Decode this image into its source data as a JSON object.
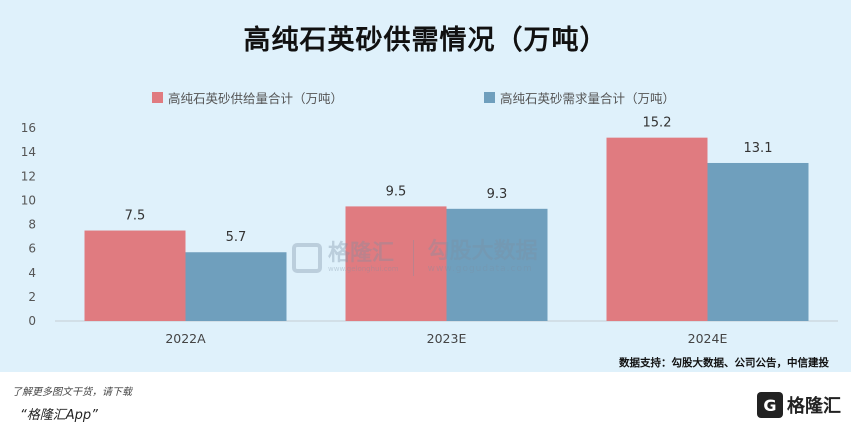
{
  "chart_data": {
    "type": "bar",
    "title": "高纯石英砂供需情况（万吨）",
    "categories": [
      "2022A",
      "2023E",
      "2024E"
    ],
    "series": [
      {
        "name": "高纯石英砂供给量合计（万吨）",
        "values": [
          7.5,
          9.5,
          15.2
        ],
        "color": "#e07b80"
      },
      {
        "name": "高纯石英砂需求量合计（万吨）",
        "values": [
          5.7,
          9.3,
          13.1
        ],
        "color": "#6f9fbd"
      }
    ],
    "ylim": [
      0,
      16
    ],
    "yticks": [
      0,
      2,
      4,
      6,
      8,
      10,
      12,
      14,
      16
    ],
    "data_labels": [
      "7.5",
      "5.7",
      "9.5",
      "9.3",
      "15.2",
      "13.1"
    ],
    "legend_position": "top",
    "grid": false
  },
  "source_note": "数据支持：勾股大数据、公司公告，中信建投",
  "watermark": {
    "brand": "格隆汇",
    "brand_url": "www.gelonghui.com",
    "brand2": "勾股大数据",
    "brand2_url": "www.gogudata.com"
  },
  "footer": {
    "line1": "了解更多图文干货，请下载",
    "line2": "“格隆汇App”",
    "logo_text": "格隆汇",
    "logo_letter": "G"
  },
  "colors": {
    "background": "#dff1fb",
    "supply": "#e07b80",
    "demand": "#6f9fbd"
  }
}
